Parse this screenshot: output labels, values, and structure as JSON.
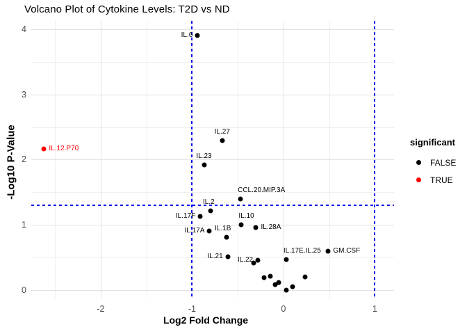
{
  "chart_data": {
    "type": "scatter",
    "title": "Volcano Plot of Cytokine Levels: T2D vs ND",
    "xlabel": "Log2 Fold Change",
    "ylabel": "-Log10 P-Value",
    "xlim": [
      -2.76,
      1.21
    ],
    "ylim": [
      -0.12,
      4.13
    ],
    "x_ticks": [
      -2,
      -1,
      0,
      1
    ],
    "y_ticks": [
      0,
      1,
      2,
      3,
      4
    ],
    "x_minor_ticks": [
      -2.5,
      -1.5,
      -0.5,
      0.5
    ],
    "y_minor_ticks": [
      0.5,
      1.5,
      2.5,
      3.5
    ],
    "grid": true,
    "threshold_lines": {
      "vertical_x": [
        -1,
        1
      ],
      "horizontal_y": 1.3,
      "style": "dashed",
      "color": "#0000ee"
    },
    "legend": {
      "title": "significant",
      "position": "right",
      "entries": [
        {
          "label": "FALSE",
          "color": "#000000"
        },
        {
          "label": "TRUE",
          "color": "#ff0000"
        }
      ]
    },
    "points": [
      {
        "label": "IL.6",
        "x": -0.94,
        "y": 3.91,
        "significant": false,
        "label_pos": "left"
      },
      {
        "label": "IL.12.P70",
        "x": -2.62,
        "y": 2.17,
        "significant": true,
        "label_pos": "right"
      },
      {
        "label": "IL.27",
        "x": -0.67,
        "y": 2.29,
        "significant": false,
        "label_pos": "top"
      },
      {
        "label": "IL.23",
        "x": -0.87,
        "y": 1.92,
        "significant": false,
        "label_pos": "top"
      },
      {
        "label": "CCL.20.MIP.3A",
        "x": -0.47,
        "y": 1.4,
        "significant": false,
        "label_pos": "topright"
      },
      {
        "label": "IL.2",
        "x": -0.8,
        "y": 1.22,
        "significant": false,
        "label_pos": "topleft"
      },
      {
        "label": "IL.17F",
        "x": -0.91,
        "y": 1.13,
        "significant": false,
        "label_pos": "left"
      },
      {
        "label": "IL.10",
        "x": -0.46,
        "y": 1.0,
        "significant": false,
        "label_pos": "topright"
      },
      {
        "label": "IL.28A",
        "x": -0.3,
        "y": 0.96,
        "significant": false,
        "label_pos": "right"
      },
      {
        "label": "IL.17A",
        "x": -0.81,
        "y": 0.9,
        "significant": false,
        "label_pos": "left"
      },
      {
        "label": "IL.1B",
        "x": -0.62,
        "y": 0.81,
        "significant": false,
        "label_pos": "topleft"
      },
      {
        "label": "IL.21",
        "x": -0.61,
        "y": 0.51,
        "significant": false,
        "label_pos": "left"
      },
      {
        "label": "IL.22",
        "x": -0.28,
        "y": 0.46,
        "significant": false,
        "label_pos": "left"
      },
      {
        "label": "IL.17E.IL.25",
        "x": 0.03,
        "y": 0.47,
        "significant": false,
        "label_pos": "topright"
      },
      {
        "label": "GM.CSF",
        "x": 0.49,
        "y": 0.6,
        "significant": false,
        "label_pos": "right"
      },
      {
        "label": "",
        "x": -0.33,
        "y": 0.41,
        "significant": false
      },
      {
        "label": "",
        "x": -0.21,
        "y": 0.19,
        "significant": false
      },
      {
        "label": "",
        "x": -0.14,
        "y": 0.21,
        "significant": false
      },
      {
        "label": "",
        "x": -0.09,
        "y": 0.08,
        "significant": false
      },
      {
        "label": "",
        "x": -0.05,
        "y": 0.12,
        "significant": false
      },
      {
        "label": "",
        "x": 0.03,
        "y": 0.0,
        "significant": false
      },
      {
        "label": "",
        "x": 0.1,
        "y": 0.05,
        "significant": false
      },
      {
        "label": "",
        "x": 0.24,
        "y": 0.2,
        "significant": false
      }
    ],
    "colors": {
      "point_false": "#000000",
      "point_true": "#ff0000",
      "grid_major": "#e2e2e2",
      "grid_minor": "#efefef",
      "tick_label": "#4d4d4d"
    }
  }
}
